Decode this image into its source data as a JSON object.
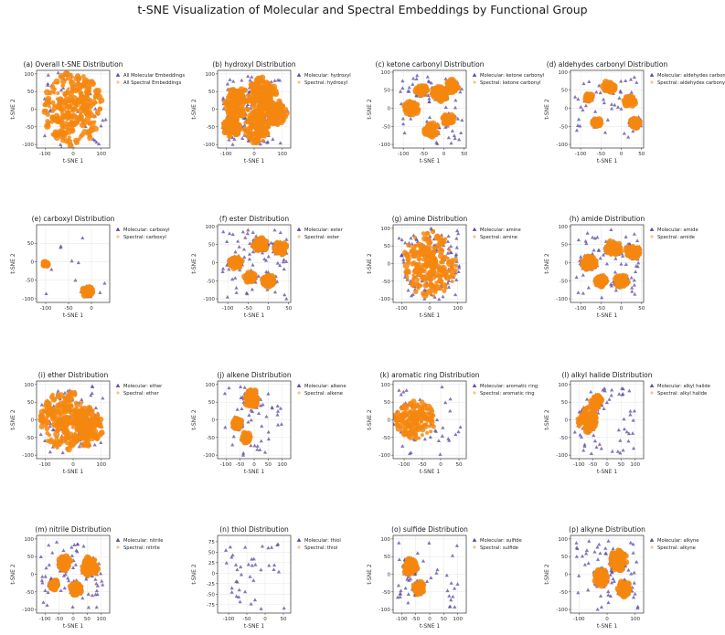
{
  "figure": {
    "title": "t-SNE Visualization of Molecular and Spectral Embeddings by Functional Group"
  },
  "colors": {
    "molecular": "#5b4a9e",
    "spectral": "#f5870f",
    "grid": "#e6e6e6",
    "frame": "#333333"
  },
  "chart_data": [
    {
      "id": "a",
      "type": "scatter",
      "title": "(a) Overall t-SNE Distribution",
      "xlabel": "t-SNE 1",
      "ylabel": "t-SNE 2",
      "xlim": [
        -130,
        130
      ],
      "ylim": [
        -110,
        110
      ],
      "xticks": [
        -100,
        0,
        100
      ],
      "yticks": [
        -100,
        -50,
        0,
        50,
        100
      ],
      "legend": [
        "All Molecular Embeddings",
        "All Spectral Embeddings"
      ],
      "legend_position": "outside-right",
      "mol_points": 46,
      "spec_blobs": [
        {
          "cx": 0,
          "cy": 0,
          "r": 105
        }
      ],
      "mol_range": {
        "x": [
          -115,
          115
        ],
        "y": [
          -100,
          100
        ]
      },
      "seed": 1
    },
    {
      "id": "b",
      "type": "scatter",
      "title": "(b) hydroxyl Distribution",
      "xlabel": "t-SNE 1",
      "ylabel": "t-SNE 2",
      "xlim": [
        -130,
        130
      ],
      "ylim": [
        -110,
        110
      ],
      "xticks": [
        -100,
        0,
        100
      ],
      "yticks": [
        -100,
        -50,
        0,
        50,
        100
      ],
      "legend": [
        "Molecular: hydroxyl",
        "Spectral: hydroxyl"
      ],
      "legend_position": "outside-right",
      "mol_points": 200,
      "spec_blobs": [
        {
          "cx": -60,
          "cy": 20,
          "r": 45
        },
        {
          "cx": 30,
          "cy": 40,
          "r": 50
        },
        {
          "cx": 10,
          "cy": -50,
          "r": 45
        },
        {
          "cx": 80,
          "cy": -10,
          "r": 35
        },
        {
          "cx": -80,
          "cy": -50,
          "r": 30
        }
      ],
      "mol_range": {
        "x": [
          -115,
          110
        ],
        "y": [
          -100,
          95
        ]
      },
      "seed": 2
    },
    {
      "id": "c",
      "type": "scatter",
      "title": "(c) ketone carbonyl Distribution",
      "xlabel": "t-SNE 1",
      "ylabel": "t-SNE 2",
      "xlim": [
        -125,
        55
      ],
      "ylim": [
        -110,
        105
      ],
      "xticks": [
        -100,
        -50,
        0,
        50
      ],
      "yticks": [
        -100,
        -50,
        0,
        50,
        100
      ],
      "legend": [
        "Molecular: ketone carbonyl",
        "Spectral: ketone carbonyl"
      ],
      "legend_position": "outside-right",
      "mol_points": 170,
      "spec_blobs": [
        {
          "cx": -80,
          "cy": 0,
          "r": 18
        },
        {
          "cx": -10,
          "cy": 40,
          "r": 20
        },
        {
          "cx": 20,
          "cy": 60,
          "r": 18
        },
        {
          "cx": -30,
          "cy": -60,
          "r": 18
        },
        {
          "cx": 10,
          "cy": -30,
          "r": 15
        },
        {
          "cx": -55,
          "cy": 50,
          "r": 14
        }
      ],
      "mol_range": {
        "x": [
          -115,
          45
        ],
        "y": [
          -100,
          95
        ]
      },
      "seed": 3
    },
    {
      "id": "d",
      "type": "scatter",
      "title": "(d) aldehydes carbonyl Distribution",
      "xlabel": "t-SNE 1",
      "ylabel": "t-SNE 2",
      "xlim": [
        -125,
        55
      ],
      "ylim": [
        -110,
        105
      ],
      "xticks": [
        -100,
        -50,
        0,
        50
      ],
      "yticks": [
        -100,
        -50,
        0,
        50,
        100
      ],
      "legend": [
        "Molecular: aldehydes carbonyl",
        "Spectral: aldehydes carbonyl"
      ],
      "legend_position": "outside-right",
      "mol_points": 140,
      "spec_blobs": [
        {
          "cx": -30,
          "cy": 60,
          "r": 15
        },
        {
          "cx": 20,
          "cy": 20,
          "r": 15
        },
        {
          "cx": 35,
          "cy": -40,
          "r": 14
        },
        {
          "cx": -60,
          "cy": -40,
          "r": 12
        },
        {
          "cx": -80,
          "cy": 30,
          "r": 10
        }
      ],
      "mol_range": {
        "x": [
          -115,
          45
        ],
        "y": [
          -100,
          95
        ]
      },
      "seed": 4
    },
    {
      "id": "e",
      "type": "scatter",
      "title": "(e) carboxyl Distribution",
      "xlabel": "t-SNE 1",
      "ylabel": "t-SNE 2",
      "xlim": [
        -120,
        40
      ],
      "ylim": [
        -110,
        100
      ],
      "xticks": [
        -100,
        -50,
        0
      ],
      "yticks": [
        -100,
        -50,
        0,
        50
      ],
      "legend": [
        "Molecular: carboxyl",
        "Spectral: carboxyl"
      ],
      "legend_position": "outside-right",
      "mol_points": 40,
      "spec_blobs": [
        {
          "cx": -8,
          "cy": -80,
          "r": 13
        },
        {
          "cx": -100,
          "cy": -5,
          "r": 6
        }
      ],
      "mol_range": {
        "x": [
          -110,
          30
        ],
        "y": [
          -95,
          90
        ]
      },
      "seed": 5
    },
    {
      "id": "f",
      "type": "scatter",
      "title": "(f) ester Distribution",
      "xlabel": "t-SNE 1",
      "ylabel": "t-SNE 2",
      "xlim": [
        -125,
        55
      ],
      "ylim": [
        -110,
        105
      ],
      "xticks": [
        -100,
        -50,
        0,
        50
      ],
      "yticks": [
        -100,
        -50,
        0,
        50,
        100
      ],
      "legend": [
        "Molecular: ester",
        "Spectral: ester"
      ],
      "legend_position": "outside-right",
      "mol_points": 170,
      "spec_blobs": [
        {
          "cx": -80,
          "cy": 0,
          "r": 18
        },
        {
          "cx": -20,
          "cy": 50,
          "r": 18
        },
        {
          "cx": 30,
          "cy": 40,
          "r": 18
        },
        {
          "cx": 0,
          "cy": -50,
          "r": 16
        },
        {
          "cx": -45,
          "cy": -40,
          "r": 14
        }
      ],
      "mol_range": {
        "x": [
          -115,
          45
        ],
        "y": [
          -100,
          95
        ]
      },
      "seed": 6
    },
    {
      "id": "g",
      "type": "scatter",
      "title": "(g) amine Distribution",
      "xlabel": "t-SNE 1",
      "ylabel": "t-SNE 2",
      "xlim": [
        -130,
        130
      ],
      "ylim": [
        -110,
        110
      ],
      "xticks": [
        -100,
        0,
        100
      ],
      "yticks": [
        -100,
        -50,
        0,
        50,
        100
      ],
      "legend": [
        "Molecular: amine",
        "Spectral: amine"
      ],
      "legend_position": "outside-right",
      "mol_points": 120,
      "spec_blobs": [
        {
          "cx": 0,
          "cy": 0,
          "r": 95
        }
      ],
      "mol_range": {
        "x": [
          -110,
          110
        ],
        "y": [
          -95,
          95
        ]
      },
      "seed": 7
    },
    {
      "id": "h",
      "type": "scatter",
      "title": "(h) amide Distribution",
      "xlabel": "t-SNE 1",
      "ylabel": "t-SNE 2",
      "xlim": [
        -125,
        55
      ],
      "ylim": [
        -110,
        105
      ],
      "xticks": [
        -100,
        -50,
        0,
        50
      ],
      "yticks": [
        -100,
        -50,
        0,
        50,
        100
      ],
      "legend": [
        "Molecular: amide",
        "Spectral: amide"
      ],
      "legend_position": "outside-right",
      "mol_points": 170,
      "spec_blobs": [
        {
          "cx": -80,
          "cy": 0,
          "r": 20
        },
        {
          "cx": -20,
          "cy": 40,
          "r": 20
        },
        {
          "cx": 30,
          "cy": 30,
          "r": 18
        },
        {
          "cx": 0,
          "cy": -50,
          "r": 18
        },
        {
          "cx": -50,
          "cy": -50,
          "r": 15
        }
      ],
      "mol_range": {
        "x": [
          -115,
          45
        ],
        "y": [
          -100,
          95
        ]
      },
      "seed": 8
    },
    {
      "id": "i",
      "type": "scatter",
      "title": "(i) ether Distribution",
      "xlabel": "t-SNE 1",
      "ylabel": "t-SNE 2",
      "xlim": [
        -130,
        130
      ],
      "ylim": [
        -110,
        110
      ],
      "xticks": [
        -100,
        0,
        100
      ],
      "yticks": [
        -100,
        -50,
        0,
        50,
        100
      ],
      "legend": [
        "Molecular: ether",
        "Spectral: ether"
      ],
      "legend_position": "outside-right",
      "mol_points": 90,
      "spec_blobs": [
        {
          "cx": -30,
          "cy": 0,
          "r": 85
        },
        {
          "cx": 50,
          "cy": -20,
          "r": 55
        }
      ],
      "mol_range": {
        "x": [
          -115,
          110
        ],
        "y": [
          -100,
          100
        ]
      },
      "seed": 9
    },
    {
      "id": "j",
      "type": "scatter",
      "title": "(j) alkene Distribution",
      "xlabel": "t-SNE 1",
      "ylabel": "t-SNE 2",
      "xlim": [
        -130,
        130
      ],
      "ylim": [
        -110,
        110
      ],
      "xticks": [
        -100,
        -50,
        0,
        50,
        100
      ],
      "yticks": [
        -100,
        -50,
        0,
        50,
        100
      ],
      "legend": [
        "Molecular: alkene",
        "Spectral: alkene"
      ],
      "legend_position": "outside-right",
      "mol_points": 130,
      "spec_blobs": [
        {
          "cx": -10,
          "cy": 60,
          "r": 28
        },
        {
          "cx": -60,
          "cy": -10,
          "r": 18
        },
        {
          "cx": -30,
          "cy": -50,
          "r": 15
        }
      ],
      "mol_range": {
        "x": [
          -110,
          100
        ],
        "y": [
          -100,
          95
        ]
      },
      "seed": 10
    },
    {
      "id": "k",
      "type": "scatter",
      "title": "(k) aromatic ring Distribution",
      "xlabel": "t-SNE 1",
      "ylabel": "t-SNE 2",
      "xlim": [
        -130,
        70
      ],
      "ylim": [
        -110,
        110
      ],
      "xticks": [
        -100,
        -50,
        0,
        50
      ],
      "yticks": [
        -100,
        -50,
        0,
        50,
        100
      ],
      "legend": [
        "Molecular: aromatic ring",
        "Spectral: aromatic ring"
      ],
      "legend_position": "outside-right",
      "mol_points": 45,
      "spec_blobs": [
        {
          "cx": -70,
          "cy": 0,
          "r": 55
        }
      ],
      "mol_range": {
        "x": [
          -120,
          55
        ],
        "y": [
          -100,
          95
        ]
      },
      "seed": 11
    },
    {
      "id": "l",
      "type": "scatter",
      "title": "(l) alkyl halide Distribution",
      "xlabel": "t-SNE 1",
      "ylabel": "t-SNE 2",
      "xlim": [
        -130,
        130
      ],
      "ylim": [
        -110,
        110
      ],
      "xticks": [
        -100,
        -50,
        0,
        50,
        100
      ],
      "yticks": [
        -100,
        -50,
        0,
        50,
        100
      ],
      "legend": [
        "Molecular: alkyl halide",
        "Spectral: alkyl halide"
      ],
      "legend_position": "outside-right",
      "mol_points": 130,
      "spec_blobs": [
        {
          "cx": -70,
          "cy": 0,
          "r": 35
        },
        {
          "cx": -40,
          "cy": 50,
          "r": 20
        }
      ],
      "mol_range": {
        "x": [
          -115,
          100
        ],
        "y": [
          -100,
          95
        ]
      },
      "seed": 12
    },
    {
      "id": "m",
      "type": "scatter",
      "title": "(m) nitrile Distribution",
      "xlabel": "t-SNE 1",
      "ylabel": "t-SNE 2",
      "xlim": [
        -130,
        130
      ],
      "ylim": [
        -110,
        110
      ],
      "xticks": [
        -100,
        -50,
        0,
        50,
        100
      ],
      "yticks": [
        -100,
        -50,
        0,
        50,
        100
      ],
      "legend": [
        "Molecular: nitrile",
        "Spectral: nitrile"
      ],
      "legend_position": "outside-right",
      "mol_points": 170,
      "spec_blobs": [
        {
          "cx": 60,
          "cy": 20,
          "r": 30
        },
        {
          "cx": -30,
          "cy": 30,
          "r": 22
        },
        {
          "cx": 10,
          "cy": -40,
          "r": 20
        },
        {
          "cx": -70,
          "cy": -30,
          "r": 15
        }
      ],
      "mol_range": {
        "x": [
          -115,
          110
        ],
        "y": [
          -95,
          95
        ]
      },
      "seed": 13
    },
    {
      "id": "n",
      "type": "scatter",
      "title": "(n) thiol Distribution",
      "xlabel": "t-SNE 1",
      "ylabel": "t-SNE 2",
      "xlim": [
        -130,
        70
      ],
      "ylim": [
        -95,
        90
      ],
      "xticks": [
        -100,
        -50,
        0,
        50
      ],
      "yticks": [
        -75,
        -50,
        -25,
        0,
        25,
        50,
        75
      ],
      "legend": [
        "Molecular: thiol",
        "Spectral: thiol"
      ],
      "legend_position": "outside-right",
      "mol_points": 40,
      "spec_blobs": [],
      "mol_range": {
        "x": [
          -110,
          60
        ],
        "y": [
          -85,
          75
        ]
      },
      "seed": 14
    },
    {
      "id": "o",
      "type": "scatter",
      "title": "(o) sulfide Distribution",
      "xlabel": "t-SNE 1",
      "ylabel": "t-SNE 2",
      "xlim": [
        -130,
        130
      ],
      "ylim": [
        -110,
        110
      ],
      "xticks": [
        -100,
        -50,
        0,
        50,
        100
      ],
      "yticks": [
        -100,
        -50,
        0,
        50,
        100
      ],
      "legend": [
        "Molecular: sulfide",
        "Spectral: sulfide"
      ],
      "legend_position": "outside-right",
      "mol_points": 140,
      "spec_blobs": [
        {
          "cx": -70,
          "cy": 20,
          "r": 25
        },
        {
          "cx": -40,
          "cy": -40,
          "r": 20
        }
      ],
      "mol_range": {
        "x": [
          -115,
          100
        ],
        "y": [
          -100,
          95
        ]
      },
      "seed": 15
    },
    {
      "id": "p",
      "type": "scatter",
      "title": "(p) alkyne Distribution",
      "xlabel": "t-SNE 1",
      "ylabel": "t-SNE 2",
      "xlim": [
        -130,
        130
      ],
      "ylim": [
        -110,
        110
      ],
      "xticks": [
        -100,
        0,
        100
      ],
      "yticks": [
        -100,
        -50,
        0,
        50,
        100
      ],
      "legend": [
        "Molecular: alkyne",
        "Spectral: alkyne"
      ],
      "legend_position": "outside-right",
      "mol_points": 170,
      "spec_blobs": [
        {
          "cx": 40,
          "cy": 40,
          "r": 30
        },
        {
          "cx": -20,
          "cy": -10,
          "r": 25
        },
        {
          "cx": 60,
          "cy": -40,
          "r": 22
        }
      ],
      "mol_range": {
        "x": [
          -110,
          110
        ],
        "y": [
          -100,
          95
        ]
      },
      "seed": 16
    }
  ]
}
